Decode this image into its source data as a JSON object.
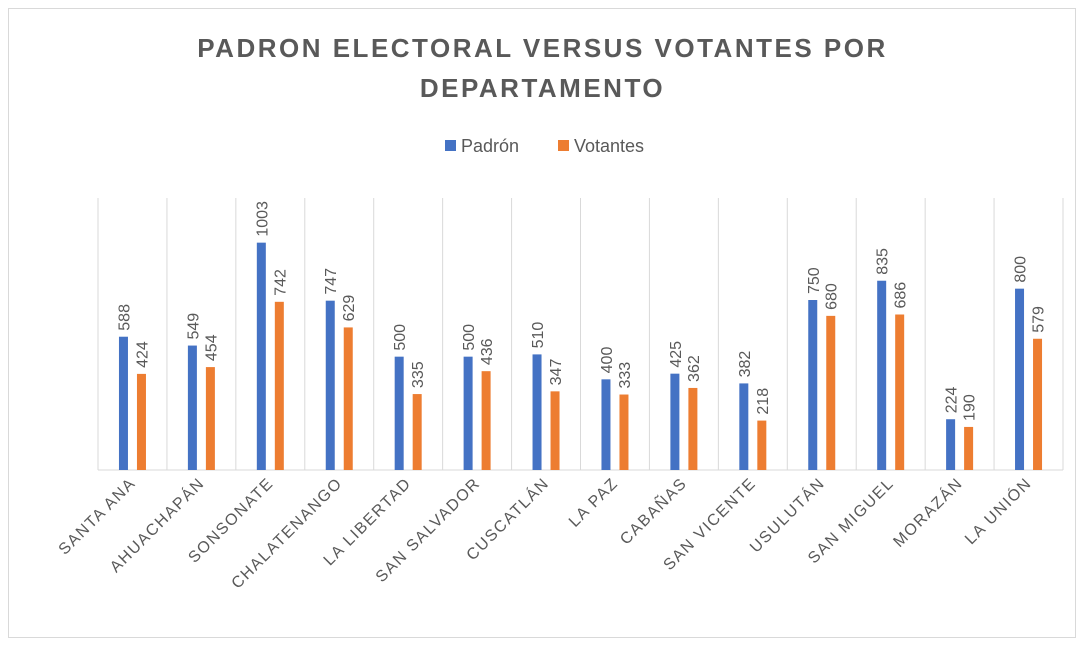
{
  "chart_data": {
    "type": "bar",
    "title": "PADRON ELECTORAL VERSUS VOTANTES POR DEPARTAMENTO",
    "categories": [
      "SANTA ANA",
      "AHUACHAPÁN",
      "SONSONATE",
      "CHALATENANGO",
      "LA LIBERTAD",
      "SAN SALVADOR",
      "CUSCATLÁN",
      "LA PAZ",
      "CABAÑAS",
      "SAN VICENTE",
      "USULUTÁN",
      "SAN MIGUEL",
      "MORAZÁN",
      "LA UNIÓN"
    ],
    "series": [
      {
        "name": "Padrón",
        "color": "#4472c4",
        "values": [
          588,
          549,
          1003,
          747,
          500,
          500,
          510,
          400,
          425,
          382,
          750,
          835,
          224,
          800
        ]
      },
      {
        "name": "Votantes",
        "color": "#ed7d31",
        "values": [
          424,
          454,
          742,
          629,
          335,
          436,
          347,
          333,
          362,
          218,
          680,
          686,
          190,
          579
        ]
      }
    ],
    "ylim": [
      0,
      1200
    ],
    "grid": true,
    "legend": "top"
  }
}
